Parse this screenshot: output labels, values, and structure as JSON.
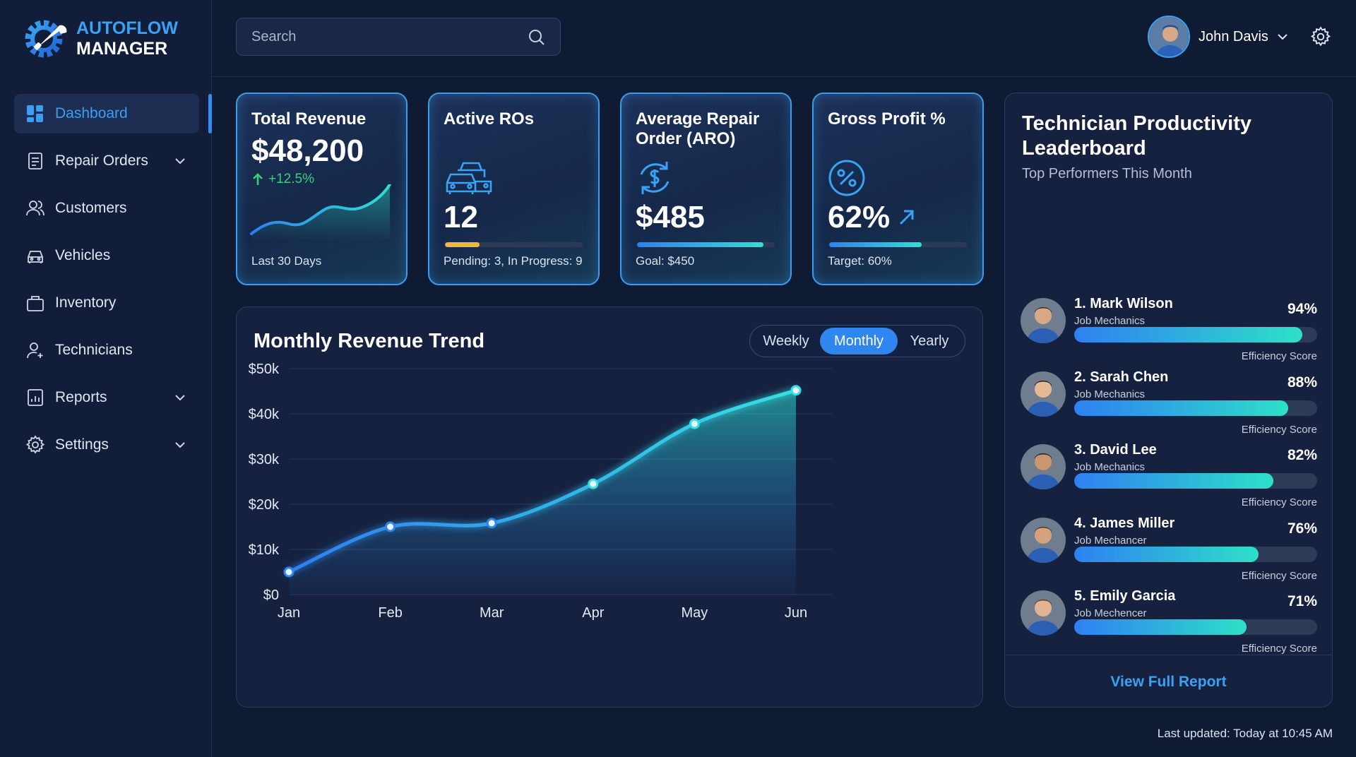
{
  "brand": {
    "line1": "AUTOFLOW",
    "line2": "MANAGER"
  },
  "search": {
    "placeholder": "Search"
  },
  "user": {
    "name": "John Davis"
  },
  "sidebar": {
    "items": [
      {
        "label": "Dashboard",
        "icon": "dashboard-icon",
        "active": true
      },
      {
        "label": "Repair Orders",
        "icon": "document-icon",
        "expandable": true
      },
      {
        "label": "Customers",
        "icon": "users-icon"
      },
      {
        "label": "Vehicles",
        "icon": "car-icon"
      },
      {
        "label": "Inventory",
        "icon": "box-icon"
      },
      {
        "label": "Technicians",
        "icon": "user-plus-icon"
      },
      {
        "label": "Reports",
        "icon": "report-icon",
        "expandable": true
      },
      {
        "label": "Settings",
        "icon": "gear-icon",
        "expandable": true
      }
    ]
  },
  "kpis": {
    "revenue": {
      "title": "Total Revenue",
      "value": "$48,200",
      "delta": "+12.5%",
      "sub": "Last 30 Days"
    },
    "active": {
      "title": "Active ROs",
      "value": "12",
      "sub": "Pending: 3, In Progress: 9",
      "progress": 0.25
    },
    "aro": {
      "title": "Average Repair Order (ARO)",
      "value": "$485",
      "sub": "Goal: $450",
      "progress": 0.92
    },
    "profit": {
      "title": "Gross Profit %",
      "value": "62%",
      "sub": "Target: 60%",
      "progress": 0.67
    }
  },
  "revenue_chart": {
    "title": "Monthly Revenue Trend",
    "periods": [
      "Weekly",
      "Monthly",
      "Yearly"
    ],
    "selected_period": "Monthly"
  },
  "chart_data": {
    "type": "area",
    "title": "Monthly Revenue Trend",
    "categories": [
      "Jan",
      "Feb",
      "Mar",
      "Apr",
      "May",
      "Jun"
    ],
    "values": [
      5000,
      15000,
      15800,
      24500,
      37800,
      45200
    ],
    "y_ticks": [
      "$0",
      "$10k",
      "$20k",
      "$30k",
      "$40k",
      "$50k"
    ],
    "ylim": [
      0,
      50000
    ],
    "grid": true,
    "line_color": "#34e1e1"
  },
  "leaderboard": {
    "title": "Technician Productivity Leaderboard",
    "subtitle": "Top Performers This Month",
    "score_label": "Efficiency Score",
    "link": "View Full Report",
    "techs": [
      {
        "name": "1. Mark Wilson",
        "role": "Job Mechanics",
        "pct": "94%",
        "value": 0.94
      },
      {
        "name": "2. Sarah Chen",
        "role": "Job Mechanics",
        "pct": "88%",
        "value": 0.88
      },
      {
        "name": "3. David Lee",
        "role": "Job Mechanics",
        "pct": "82%",
        "value": 0.82
      },
      {
        "name": "4. James Miller",
        "role": "Job Mechancer",
        "pct": "76%",
        "value": 0.76
      },
      {
        "name": "5. Emily Garcia",
        "role": "Job Mechencer",
        "pct": "71%",
        "value": 0.71
      }
    ]
  },
  "footer": {
    "updated": "Last updated: Today at 10:45 AM"
  },
  "colors": {
    "accent": "#3aa2f4",
    "positive": "#36d07a",
    "warning": "#f2b63a",
    "teal": "#2ee0c8",
    "background": "#0f1a33"
  }
}
